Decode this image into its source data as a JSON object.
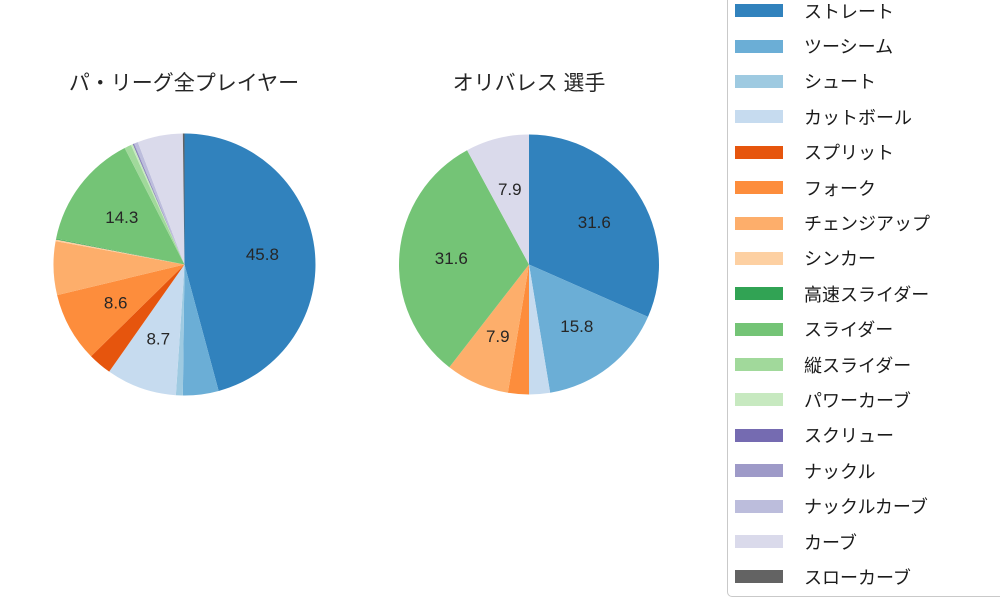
{
  "chart_data": [
    {
      "type": "pie",
      "title": "パ・リーグ全プレイヤー",
      "unit": "percent",
      "start_angle": "top",
      "direction": "clockwise",
      "slices": [
        {
          "name": "ストレート",
          "value": 45.8,
          "pct_label": "45.8",
          "color": "#3182bd"
        },
        {
          "name": "ツーシーム",
          "value": 4.4,
          "pct_label": "",
          "color": "#6baed6"
        },
        {
          "name": "シュート",
          "value": 0.85,
          "pct_label": "",
          "color": "#9ecae1"
        },
        {
          "name": "カットボール",
          "value": 8.7,
          "pct_label": "8.7",
          "color": "#c6dbef"
        },
        {
          "name": "スプリット",
          "value": 2.9,
          "pct_label": "",
          "color": "#e6550d"
        },
        {
          "name": "フォーク",
          "value": 8.6,
          "pct_label": "8.6",
          "color": "#fd8d3c"
        },
        {
          "name": "チェンジアップ",
          "value": 6.6,
          "pct_label": "",
          "color": "#fdae6b"
        },
        {
          "name": "シンカー",
          "value": 0.2,
          "pct_label": "",
          "color": "#fdd0a2"
        },
        {
          "name": "高速スライダー",
          "value": 0.1,
          "pct_label": "",
          "color": "#31a354"
        },
        {
          "name": "スライダー",
          "value": 14.3,
          "pct_label": "14.3",
          "color": "#74c476"
        },
        {
          "name": "縦スライダー",
          "value": 0.85,
          "pct_label": "",
          "color": "#a1d99b"
        },
        {
          "name": "パワーカーブ",
          "value": 0.25,
          "pct_label": "",
          "color": "#c7e9c0"
        },
        {
          "name": "スクリュー",
          "value": 0.1,
          "pct_label": "",
          "color": "#756bb1"
        },
        {
          "name": "ナックル",
          "value": 0.1,
          "pct_label": "",
          "color": "#9e9ac8"
        },
        {
          "name": "ナックルカーブ",
          "value": 0.45,
          "pct_label": "",
          "color": "#bcbddc"
        },
        {
          "name": "カーブ",
          "value": 5.6,
          "pct_label": "",
          "color": "#dadaeb"
        },
        {
          "name": "スローカーブ",
          "value": 0.2,
          "pct_label": "",
          "color": "#636363"
        }
      ]
    },
    {
      "type": "pie",
      "title": "オリバレス 選手",
      "unit": "percent",
      "start_angle": "top",
      "direction": "clockwise",
      "slices": [
        {
          "name": "ストレート",
          "value": 31.6,
          "pct_label": "31.6",
          "color": "#3182bd"
        },
        {
          "name": "ツーシーム",
          "value": 15.8,
          "pct_label": "15.8",
          "color": "#6baed6"
        },
        {
          "name": "カットボール",
          "value": 2.6,
          "pct_label": "",
          "color": "#c6dbef"
        },
        {
          "name": "フォーク",
          "value": 2.6,
          "pct_label": "",
          "color": "#fd8d3c"
        },
        {
          "name": "チェンジアップ",
          "value": 7.9,
          "pct_label": "7.9",
          "color": "#fdae6b"
        },
        {
          "name": "スライダー",
          "value": 31.6,
          "pct_label": "31.6",
          "color": "#74c476"
        },
        {
          "name": "カーブ",
          "value": 7.9,
          "pct_label": "7.9",
          "color": "#dadaeb"
        }
      ]
    }
  ],
  "legend": {
    "items": [
      {
        "label": "ストレート",
        "color": "#3182bd"
      },
      {
        "label": "ツーシーム",
        "color": "#6baed6"
      },
      {
        "label": "シュート",
        "color": "#9ecae1"
      },
      {
        "label": "カットボール",
        "color": "#c6dbef"
      },
      {
        "label": "スプリット",
        "color": "#e6550d"
      },
      {
        "label": "フォーク",
        "color": "#fd8d3c"
      },
      {
        "label": "チェンジアップ",
        "color": "#fdae6b"
      },
      {
        "label": "シンカー",
        "color": "#fdd0a2"
      },
      {
        "label": "高速スライダー",
        "color": "#31a354"
      },
      {
        "label": "スライダー",
        "color": "#74c476"
      },
      {
        "label": "縦スライダー",
        "color": "#a1d99b"
      },
      {
        "label": "パワーカーブ",
        "color": "#c7e9c0"
      },
      {
        "label": "スクリュー",
        "color": "#756bb1"
      },
      {
        "label": "ナックル",
        "color": "#9e9ac8"
      },
      {
        "label": "ナックルカーブ",
        "color": "#bcbddc"
      },
      {
        "label": "カーブ",
        "color": "#dadaeb"
      },
      {
        "label": "スローカーブ",
        "color": "#636363"
      }
    ]
  }
}
